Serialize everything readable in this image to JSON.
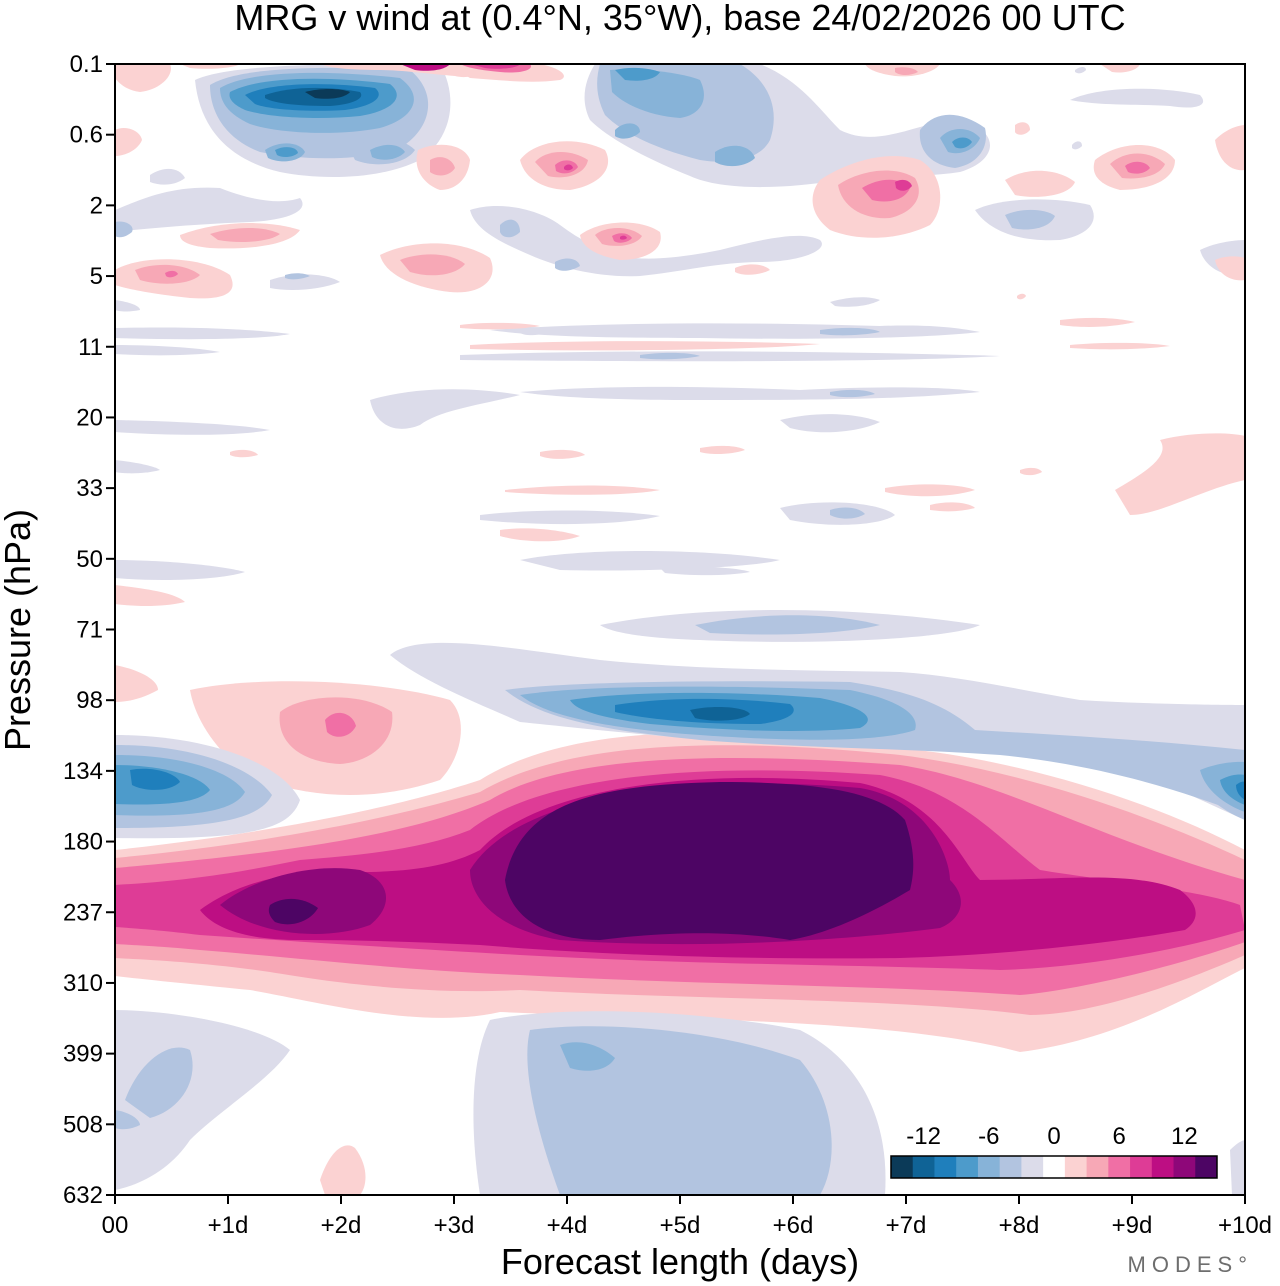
{
  "chart_data": {
    "type": "heatmap",
    "title": "MRG v wind at (0.4°N, 35°W),  base 24/02/2026  00 UTC",
    "xlabel": "Forecast length (days)",
    "ylabel": "Pressure (hPa)",
    "x_ticks": [
      "00",
      "+1d",
      "+2d",
      "+3d",
      "+4d",
      "+5d",
      "+6d",
      "+7d",
      "+8d",
      "+9d",
      "+10d"
    ],
    "x_range_days": [
      0,
      10
    ],
    "y_ticks": [
      "0.1",
      "0.6",
      "2",
      "5",
      "11",
      "20",
      "33",
      "50",
      "71",
      "98",
      "134",
      "180",
      "237",
      "310",
      "399",
      "508",
      "632"
    ],
    "y_range_hpa": [
      0.1,
      632
    ],
    "contour_levels": [
      -14,
      -12,
      -10,
      -8,
      -6,
      -4,
      -2,
      2,
      4,
      6,
      8,
      10,
      12,
      14
    ],
    "colorbar": {
      "tick_labels": [
        "-12",
        "-6",
        "0",
        "6",
        "12"
      ],
      "colors": [
        "#0b3a58",
        "#0f6396",
        "#1f7fbc",
        "#4d9bcb",
        "#87b3d8",
        "#b2c4e0",
        "#dcdcea",
        "#ffffff",
        "#fbd2d2",
        "#f7a8b6",
        "#f06fa5",
        "#de3c96",
        "#bd0e83",
        "#8e0779",
        "#4d0564"
      ]
    },
    "features": [
      {
        "day": 5.2,
        "hpa": 200,
        "value": 14,
        "note": "strong positive core 4-7d, 140-260 hPa"
      },
      {
        "day": 1.6,
        "hpa": 237,
        "value": 12,
        "note": "positive core near +1.5d"
      },
      {
        "day": 0.3,
        "hpa": 134,
        "value": -8,
        "note": "negative at 134 hPa early"
      },
      {
        "day": 5.5,
        "hpa": 100,
        "value": -10,
        "note": "negative band near 100 hPa"
      },
      {
        "day": 1.8,
        "hpa": 0.3,
        "value": -12,
        "note": "negative near model top"
      },
      {
        "day": 4.5,
        "hpa": 420,
        "value": -6,
        "note": "weak negative lower levels"
      },
      {
        "day": 10,
        "hpa": 134,
        "value": -8,
        "note": "negative at end of range"
      }
    ]
  },
  "logo_text": "MODES°"
}
